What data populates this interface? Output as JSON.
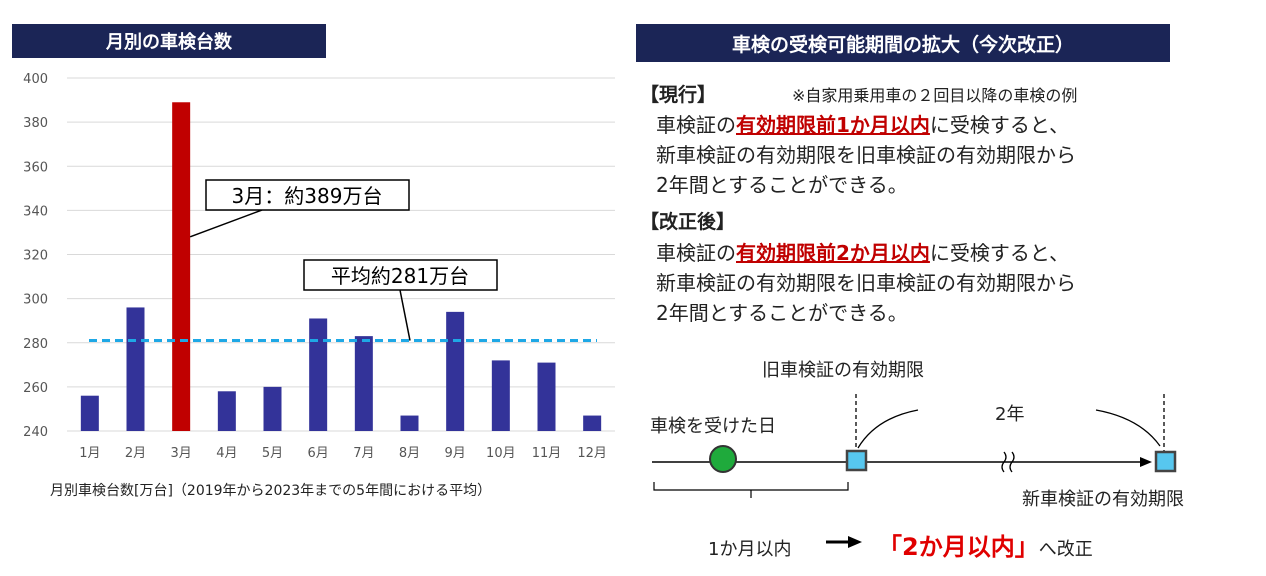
{
  "left_panel": {
    "title": "月別の車検台数",
    "caption": "月別車検台数[万台]（2019年から2023年までの5年間における平均）",
    "callout_peak": "3月：約389万台",
    "callout_avg": "平均約281万台"
  },
  "chart_data": {
    "type": "bar",
    "categories": [
      "1月",
      "2月",
      "3月",
      "4月",
      "5月",
      "6月",
      "7月",
      "8月",
      "9月",
      "10月",
      "11月",
      "12月"
    ],
    "values": [
      256,
      296,
      389,
      258,
      260,
      291,
      283,
      247,
      294,
      272,
      271,
      247
    ],
    "highlight_index": 2,
    "ylim": [
      240,
      400
    ],
    "yticks": [
      240,
      260,
      280,
      300,
      320,
      340,
      360,
      380,
      400
    ],
    "average": 281,
    "colors": {
      "bar": "#333399",
      "highlight": "#c00000",
      "average_line": "#1ea8e6",
      "grid": "#d9d9d9"
    },
    "grid": true
  },
  "right_panel": {
    "title": "車検の受検可能期間の拡大（今次改正）",
    "current_label": "【現行】",
    "note": "※自家用乗用車の２回目以降の車検の例",
    "current_lines": {
      "pre": "車検証の",
      "highlight": "有効期限前1か月以内",
      "post": "に受検すると、",
      "line2": "新車検証の有効期限を旧車検証の有効期限から",
      "line3": "2年間とすることができる。"
    },
    "revised_label": "【改正後】",
    "revised_lines": {
      "pre": "車検証の",
      "highlight": "有効期限前2か月以内",
      "post": "に受検すると、",
      "line2": "新車検証の有効期限を旧車検証の有効期限から",
      "line3": "2年間とすることができる。"
    },
    "diagram": {
      "old_expiry": "旧車検証の有効期限",
      "inspection_day": "車検を受けた日",
      "two_years": "2年",
      "new_expiry": "新車検証の有効期限",
      "one_month": "1か月以内",
      "revised_to": "「2か月以内」",
      "revised_suffix": "へ改正"
    }
  }
}
